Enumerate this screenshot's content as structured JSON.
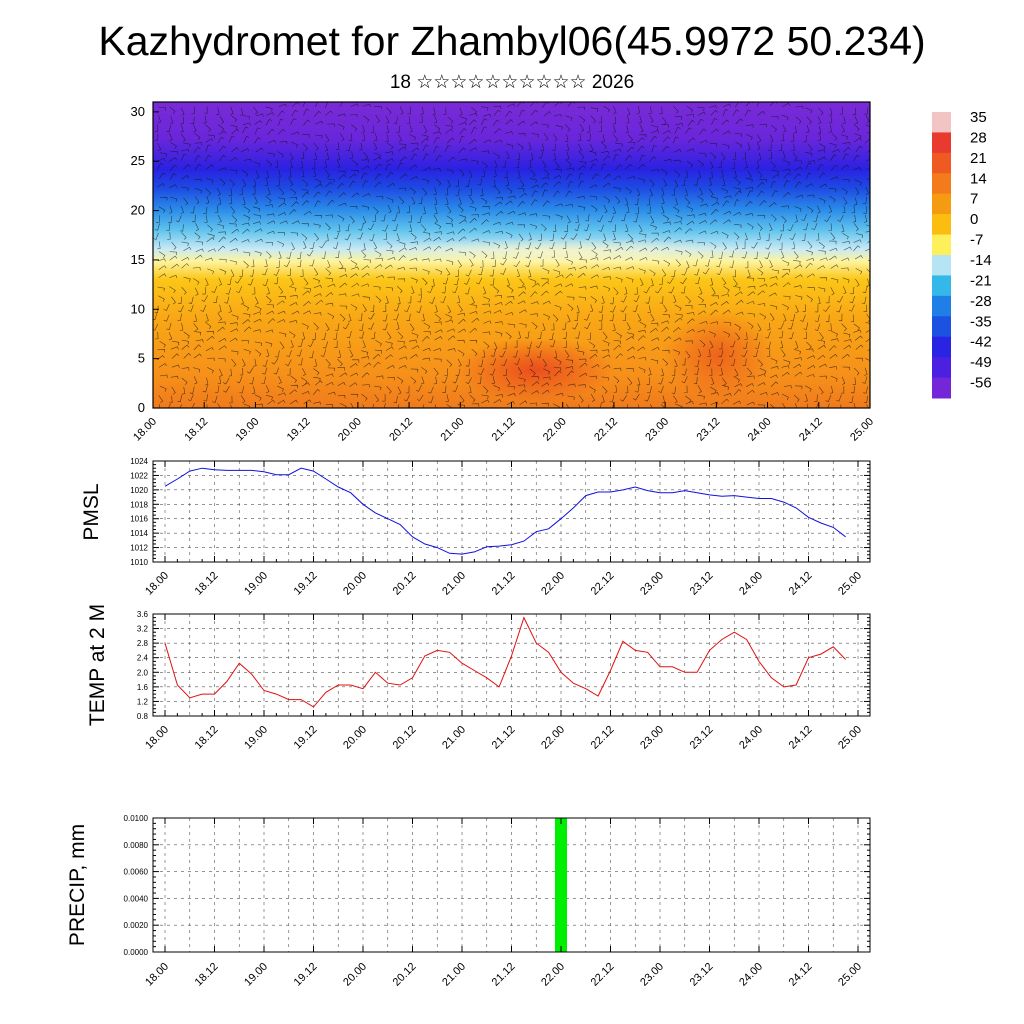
{
  "title": "Kazhydromet for Zhambyl06(45.9972 50.234)",
  "subtitle": "18 ☆☆☆☆☆☆☆☆☆☆ 2026",
  "chart_data": [
    {
      "type": "heatmap",
      "description_kind": "temperature-height section with wind barbs",
      "x_tick_labels": [
        "18.00",
        "18.12",
        "19.00",
        "19.12",
        "20.00",
        "20.12",
        "21.00",
        "21.12",
        "22.00",
        "22.12",
        "23.00",
        "23.12",
        "24.00",
        "24.12",
        "25.00"
      ],
      "y_ticks": [
        0,
        5,
        10,
        15,
        20,
        25,
        30
      ],
      "ylim": [
        0,
        31
      ],
      "colorbar_labels": [
        "35",
        "28",
        "21",
        "14",
        "7",
        "0",
        "-7",
        "-14",
        "-21",
        "-28",
        "-35",
        "-42",
        "-49",
        "-56"
      ],
      "colorbar_colors": [
        "#f2c4c4",
        "#e83a2e",
        "#ee5a22",
        "#f47b1c",
        "#f59b12",
        "#fbbd10",
        "#fdf05a",
        "#b7e4f2",
        "#34b7e9",
        "#1f7fe6",
        "#1c52e2",
        "#2924e3",
        "#4c20e0",
        "#7427d9"
      ]
    },
    {
      "type": "line",
      "ylabel": "PMSL",
      "color": "#1010e0",
      "ylim": [
        1010,
        1024
      ],
      "y_ticks": [
        "1010",
        "1012",
        "1014",
        "1016",
        "1018",
        "1020",
        "1022",
        "1024"
      ],
      "x_tick_labels": [
        "18.00",
        "18.12",
        "19.00",
        "19.12",
        "20.00",
        "20.12",
        "21.00",
        "21.12",
        "22.00",
        "22.12",
        "23.00",
        "23.12",
        "24.00",
        "24.12",
        "25.00"
      ],
      "x": [
        0,
        3,
        6,
        9,
        12,
        15,
        18,
        21,
        24,
        27,
        30,
        33,
        36,
        39,
        42,
        45,
        48,
        51,
        54,
        57,
        60,
        63,
        66,
        69,
        72,
        75,
        78,
        81,
        84,
        87,
        90,
        93,
        96,
        99,
        102,
        105,
        108,
        111,
        114,
        117,
        120,
        123,
        126,
        129,
        132,
        135,
        138,
        141,
        144,
        147,
        150,
        153,
        156,
        159,
        162,
        165
      ],
      "values": [
        1020.5,
        1021.5,
        1022.6,
        1023.0,
        1022.8,
        1022.7,
        1022.7,
        1022.7,
        1022.5,
        1022.1,
        1022.1,
        1023.0,
        1022.6,
        1021.5,
        1020.4,
        1019.6,
        1018.0,
        1016.8,
        1016.0,
        1015.2,
        1013.5,
        1012.5,
        1012.0,
        1011.2,
        1011.1,
        1011.4,
        1012.1,
        1012.2,
        1012.4,
        1012.9,
        1014.2,
        1014.6,
        1016.0,
        1017.5,
        1019.2,
        1019.7,
        1019.7,
        1020.0,
        1020.4,
        1019.9,
        1019.6,
        1019.6,
        1019.9,
        1019.6,
        1019.3,
        1019.1,
        1019.2,
        1019.0,
        1018.8,
        1018.8,
        1018.3,
        1017.5,
        1016.2,
        1015.4,
        1014.8,
        1013.5
      ]
    },
    {
      "type": "line",
      "ylabel": "TEMP at 2 M",
      "color": "#e01010",
      "ylim": [
        0.8,
        3.6
      ],
      "y_ticks": [
        "0.8",
        "1.2",
        "1.6",
        "2.0",
        "2.4",
        "2.8",
        "3.2",
        "3.6"
      ],
      "x_tick_labels": [
        "18.00",
        "18.12",
        "19.00",
        "19.12",
        "20.00",
        "20.12",
        "21.00",
        "21.12",
        "22.00",
        "22.12",
        "23.00",
        "23.12",
        "24.00",
        "24.12",
        "25.00"
      ],
      "x": [
        0,
        3,
        6,
        9,
        12,
        15,
        18,
        21,
        24,
        27,
        30,
        33,
        36,
        39,
        42,
        45,
        48,
        51,
        54,
        57,
        60,
        63,
        66,
        69,
        72,
        75,
        78,
        81,
        84,
        87,
        90,
        93,
        96,
        99,
        102,
        105,
        108,
        111,
        114,
        117,
        120,
        123,
        126,
        129,
        132,
        135,
        138,
        141,
        144,
        147,
        150,
        153,
        156,
        159,
        162,
        165
      ],
      "values": [
        2.8,
        1.65,
        1.3,
        1.4,
        1.4,
        1.75,
        2.25,
        1.95,
        1.5,
        1.4,
        1.25,
        1.25,
        1.05,
        1.45,
        1.65,
        1.65,
        1.55,
        2.0,
        1.7,
        1.65,
        1.85,
        2.45,
        2.6,
        2.55,
        2.25,
        2.05,
        1.85,
        1.6,
        2.45,
        3.5,
        2.8,
        2.55,
        2.0,
        1.7,
        1.55,
        1.35,
        2.05,
        2.85,
        2.6,
        2.55,
        2.15,
        2.15,
        2.0,
        2.0,
        2.6,
        2.9,
        3.1,
        2.9,
        2.3,
        1.85,
        1.6,
        1.65,
        2.4,
        2.5,
        2.7,
        2.35
      ]
    },
    {
      "type": "bar",
      "ylabel": "PRECIP, mm",
      "color": "#00ee00",
      "ylim": [
        0,
        0.01
      ],
      "y_ticks": [
        "0.0000",
        "0.0020",
        "0.0040",
        "0.0060",
        "0.0080",
        "0.0100"
      ],
      "x_tick_labels": [
        "18.00",
        "18.12",
        "19.00",
        "19.12",
        "20.00",
        "20.12",
        "21.00",
        "21.12",
        "22.00",
        "22.12",
        "23.00",
        "23.12",
        "24.00",
        "24.12",
        "25.00"
      ],
      "bars": [
        {
          "x": 96,
          "value": 0.01
        }
      ]
    }
  ]
}
